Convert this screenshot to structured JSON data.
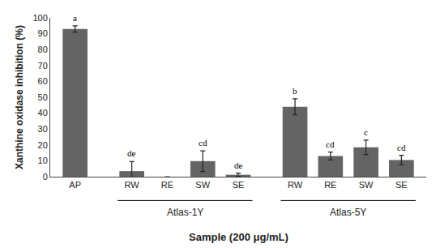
{
  "chart_data": {
    "type": "bar",
    "categories": [
      "AP",
      "RW",
      "RE",
      "SW",
      "SE",
      "RW",
      "RE",
      "SW",
      "SE"
    ],
    "values": [
      93.0,
      3.5,
      0.0,
      9.8,
      1.2,
      44.0,
      13.0,
      18.5,
      10.5
    ],
    "errors": [
      2.0,
      6.0,
      0.0,
      6.5,
      1.0,
      5.0,
      2.5,
      4.5,
      3.0
    ],
    "color": "#646464",
    "annotations": [
      {
        "x": 0,
        "text": "a"
      },
      {
        "x": 1,
        "text": "de"
      },
      {
        "x": 3,
        "text": "cd"
      },
      {
        "x": 4,
        "text": "de"
      },
      {
        "x": 5,
        "text": "b"
      },
      {
        "x": 6,
        "text": "cd"
      },
      {
        "x": 7,
        "text": "c"
      },
      {
        "x": 8,
        "text": "cd"
      }
    ],
    "groups": [
      {
        "name": "Atlas-1Y",
        "start": 1,
        "end": 4
      },
      {
        "name": "Atlas-5Y",
        "start": 5,
        "end": 8
      }
    ],
    "xlabel": "Sample (200 μg/mL)",
    "ylabel": "Xanthine oxidase inhibition (%)",
    "ylim": [
      0,
      100
    ],
    "yticks": [
      0,
      10,
      20,
      30,
      40,
      50,
      60,
      70,
      80,
      90,
      100
    ],
    "grid": false
  }
}
